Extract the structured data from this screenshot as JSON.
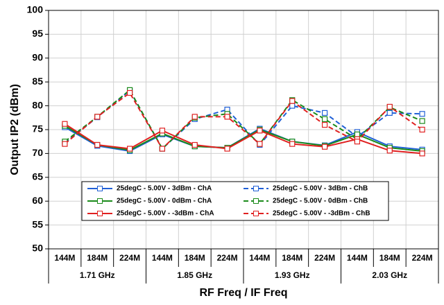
{
  "chart_data": {
    "type": "line",
    "x_title": "RF Freq / IF Freq",
    "y_title": "Output IP2 (dBm)",
    "categories": [
      "144M",
      "184M",
      "224M",
      "144M",
      "184M",
      "224M",
      "144M",
      "184M",
      "224M",
      "144M",
      "184M",
      "224M"
    ],
    "groups": [
      "1.71 GHz",
      "1.85 GHz",
      "1.93 GHz",
      "2.03 GHz"
    ],
    "ylim": [
      50,
      100
    ],
    "yticks": [
      50,
      55,
      60,
      65,
      70,
      75,
      80,
      85,
      90,
      95,
      100
    ],
    "grid": true,
    "series": [
      {
        "name": "25degC - 5.00V - 3dBm - ChA",
        "color": "#1f5fd6",
        "dash": false,
        "values": [
          75.5,
          71.6,
          70.5,
          74,
          71.5,
          71.2,
          75.2,
          72.5,
          71.7,
          74.5,
          71.5,
          70.8
        ]
      },
      {
        "name": "25degC - 5.00V - 3dBm - ChB",
        "color": "#1f5fd6",
        "dash": true,
        "values": [
          72.2,
          77.6,
          83.2,
          71,
          77.2,
          79.2,
          71.8,
          80,
          78.5,
          73.5,
          78.5,
          78.3
        ]
      },
      {
        "name": "25degC - 5.00V - 0dBm - ChA",
        "color": "#1a8a1a",
        "dash": false,
        "values": [
          75.8,
          71.8,
          70.7,
          74.2,
          71.5,
          71.2,
          75,
          72.5,
          71.6,
          74,
          71.2,
          70.5
        ]
      },
      {
        "name": "25degC - 5.00V - 0dBm - ChB",
        "color": "#1a8a1a",
        "dash": true,
        "values": [
          72.5,
          77.7,
          83.3,
          71,
          77.5,
          78.3,
          72,
          81.2,
          77.2,
          73,
          79.7,
          76.8
        ]
      },
      {
        "name": "25degC - 5.00V - -3dBm - ChA",
        "color": "#e02020",
        "dash": false,
        "values": [
          76.2,
          71.8,
          71,
          74.8,
          71.8,
          71,
          74.8,
          72,
          71.4,
          73,
          70.6,
          70
        ]
      },
      {
        "name": "25degC - 5.00V - -3dBm - ChB",
        "color": "#e02020",
        "dash": true,
        "values": [
          72,
          77.7,
          82.7,
          71,
          77.7,
          77.7,
          72,
          81,
          76,
          72.5,
          79.8,
          75
        ]
      }
    ]
  }
}
